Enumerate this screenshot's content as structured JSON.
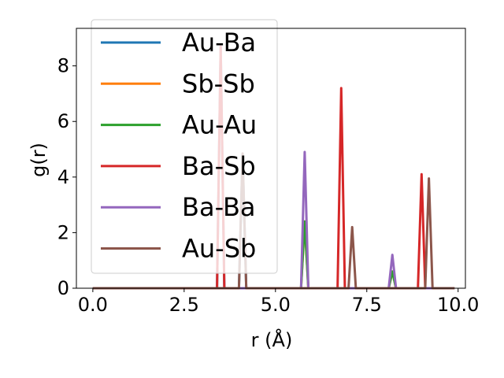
{
  "chart_data": {
    "type": "line",
    "xlabel": "r (Å)",
    "ylabel": "g(r)",
    "xlim": [
      -0.45,
      10.2
    ],
    "ylim": [
      0,
      9.35
    ],
    "x_ticks": [
      0.0,
      2.5,
      5.0,
      7.5,
      10.0
    ],
    "x_tick_labels": [
      "0.0",
      "2.5",
      "5.0",
      "7.5",
      "10.0"
    ],
    "y_ticks": [
      0,
      2,
      4,
      6,
      8
    ],
    "y_tick_labels": [
      "0",
      "2",
      "4",
      "6",
      "8"
    ],
    "grid": false,
    "legend_position": "upper-left",
    "series": [
      {
        "name": "Au-Ba",
        "color": "#1f77b4",
        "peaks": [
          {
            "x": 3.5,
            "y": 8.7
          },
          {
            "x": 4.1,
            "y": 4.8
          }
        ]
      },
      {
        "name": "Sb-Sb",
        "color": "#ff7f0e",
        "peaks": [
          {
            "x": 5.8,
            "y": 2.4
          },
          {
            "x": 8.2,
            "y": 0.6
          }
        ]
      },
      {
        "name": "Au-Au",
        "color": "#2ca02c",
        "peaks": [
          {
            "x": 5.8,
            "y": 2.4
          },
          {
            "x": 8.2,
            "y": 0.6
          }
        ]
      },
      {
        "name": "Ba-Sb",
        "color": "#d62728",
        "peaks": [
          {
            "x": 3.5,
            "y": 8.7
          },
          {
            "x": 6.8,
            "y": 7.2
          },
          {
            "x": 9.0,
            "y": 4.1
          }
        ]
      },
      {
        "name": "Ba-Ba",
        "color": "#9467bd",
        "peaks": [
          {
            "x": 5.8,
            "y": 4.9
          },
          {
            "x": 8.2,
            "y": 1.2
          }
        ]
      },
      {
        "name": "Au-Sb",
        "color": "#8c564b",
        "peaks": [
          {
            "x": 4.1,
            "y": 4.85
          },
          {
            "x": 7.1,
            "y": 2.2
          },
          {
            "x": 9.2,
            "y": 3.95
          }
        ]
      }
    ]
  }
}
